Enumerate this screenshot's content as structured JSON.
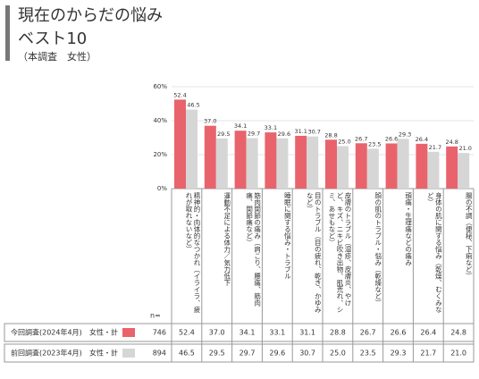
{
  "header": {
    "title": "現在のからだの悩み",
    "subtitle": "ベスト10",
    "note": "（本調査　女性）"
  },
  "chart_data": {
    "type": "bar",
    "categories": [
      "精神的・肉体的なつかれ（イライラ、疲れが取れないなど）",
      "運動不足による体力／気力低下",
      "筋肉関節の痛み（肩こり、腰痛、筋肉痛、関節痛など）",
      "睡眠に関する悩み・トラブル",
      "目のトラブル（目の疲れ、乾き、かゆみなど）",
      "皮膚のトラブル（湿疹、皮膚炎、やけど、キズ、ニキビ吹き出物、肌荒れ、シミ、あせもなど）",
      "顔の肌のトラブル・悩み（乾燥など）",
      "頭痛・生理痛などの痛み",
      "身体の肌に関する悩み（乾燥、むくみなど）",
      "腸の不調（便秘、下痢など）"
    ],
    "series": [
      {
        "name": "今回調査(2024年4月)",
        "segment": "女性・計",
        "n": 746,
        "color": "#e9636c",
        "values": [
          52.4,
          37.0,
          34.1,
          33.1,
          31.1,
          28.8,
          26.7,
          26.6,
          26.4,
          24.8
        ],
        "value_labels": [
          "52.4",
          "37.0",
          "34.1",
          "33.1",
          "31.1",
          "28.8",
          "26.7",
          "26.6",
          "26.4",
          "24.8"
        ]
      },
      {
        "name": "前回調査(2023年4月)",
        "segment": "女性・計",
        "n": 894,
        "color": "#d6d6d6",
        "values": [
          46.5,
          29.5,
          29.7,
          29.6,
          30.7,
          25.0,
          23.5,
          29.3,
          21.7,
          21.0
        ],
        "value_labels": [
          "46.5",
          "29.5",
          "29.7",
          "29.6",
          "30.7",
          "25.0",
          "23.5",
          "29.3",
          "21.7",
          "21.0"
        ]
      }
    ],
    "n_label": "n=",
    "ylim": [
      0,
      60
    ],
    "yticks": [
      {
        "value": 0,
        "label": "0%"
      },
      {
        "value": 20,
        "label": "20%"
      },
      {
        "value": 40,
        "label": "40%"
      },
      {
        "value": 60,
        "label": "60%"
      }
    ],
    "grid": true
  }
}
